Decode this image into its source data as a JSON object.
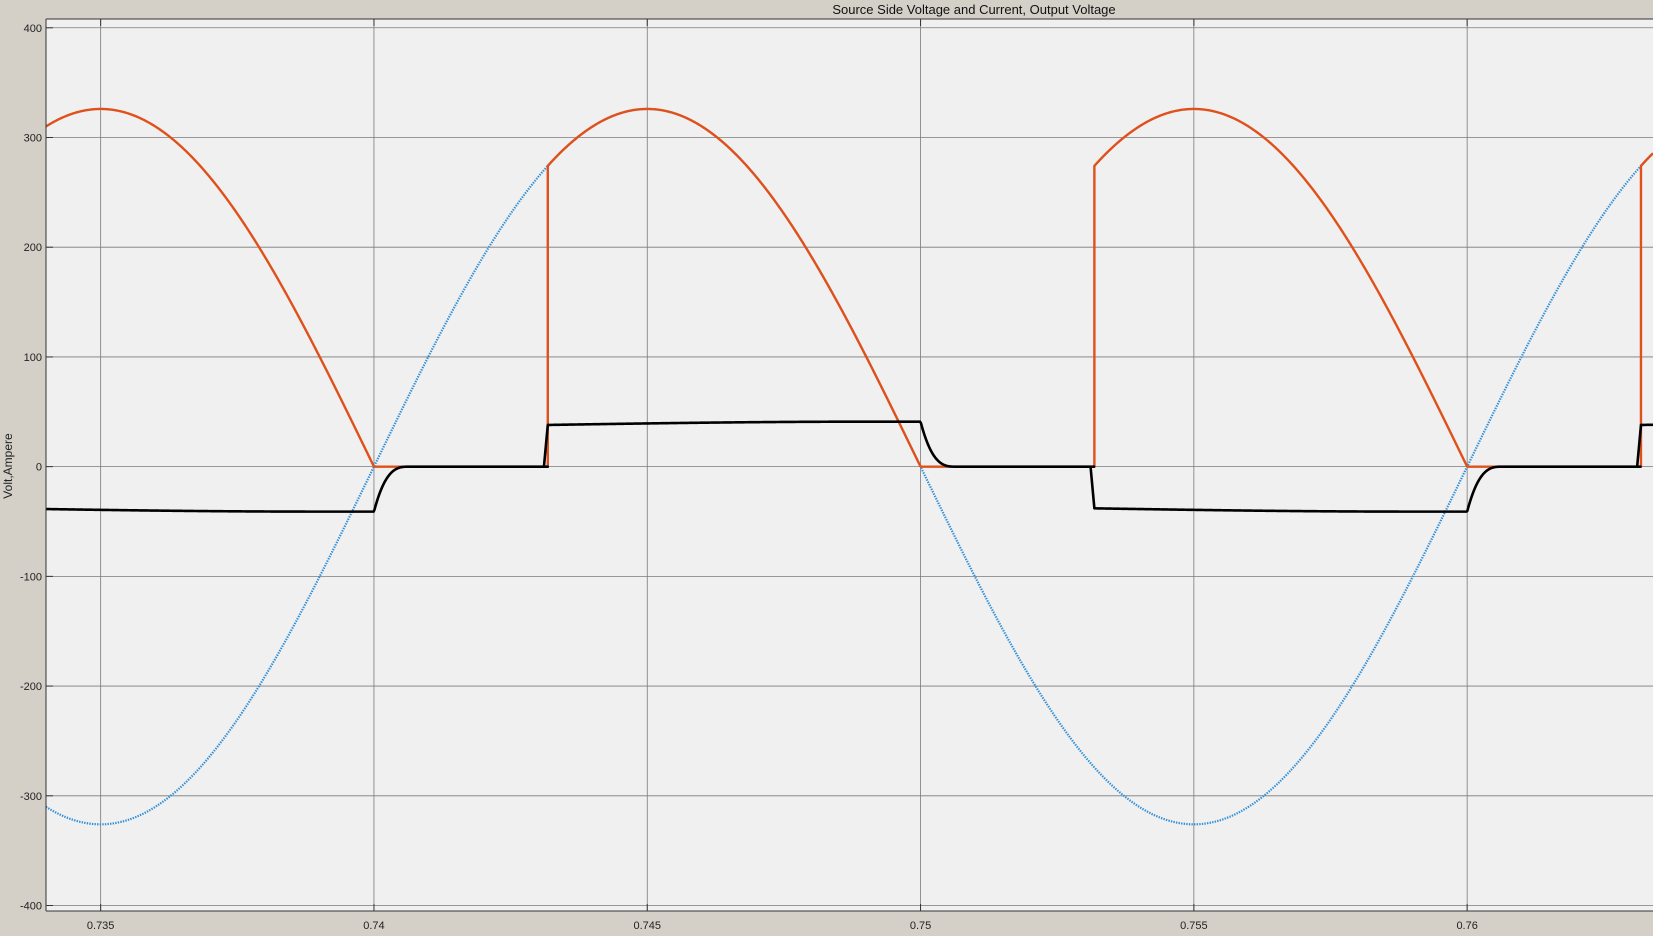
{
  "window": {
    "title": "Source Side Voltage and Current, Output Voltage"
  },
  "chart_data": {
    "type": "line",
    "title": "Source Side Voltage and Current, Output Voltage",
    "xlabel": "",
    "ylabel": "Volt,Ampere",
    "xlim": [
      0.734,
      0.7634
    ],
    "ylim": [
      -405,
      408
    ],
    "grid": true,
    "legend": "none",
    "x_ticks": [
      0.735,
      0.74,
      0.745,
      0.75,
      0.755,
      0.76
    ],
    "x_tick_labels": [
      "0.735",
      "0.74",
      "0.745",
      "0.75",
      "0.755",
      "0.76"
    ],
    "y_ticks": [
      400,
      300,
      200,
      100,
      0,
      -100,
      -200,
      -300,
      -400
    ],
    "y_tick_labels": [
      "400",
      "300",
      "200",
      "100",
      "0",
      "-100",
      "-200",
      "-300",
      "-400"
    ],
    "signal": {
      "frequency_hz": 50,
      "amplitude": 326,
      "firing_delay_s": 0.00318,
      "current_peak": 41,
      "current_at_firing": 38,
      "current_tail_s": 0.00065
    },
    "series": [
      {
        "name": "Source Voltage",
        "color": "#2f8fd8",
        "style": "dotted",
        "description": "sinusoid, zero-crossings at 0.74 and 0.76 (rising) and 0.75 (falling), peaks +326 at 0.745, -326 at 0.735 and 0.755"
      },
      {
        "name": "Output Voltage",
        "color": "#e0501a",
        "style": "solid",
        "description": "phase-controlled full-wave output: |v| after firing at ~0.7432, 0.7532, 0.7632; zero between zero-crossing and firing"
      },
      {
        "name": "Source Current",
        "color": "#000000",
        "style": "solid",
        "description": "about +38..+41 A in positive conduction, -38..-41 A in negative conduction, decays to 0 after each zero crossing"
      }
    ]
  }
}
